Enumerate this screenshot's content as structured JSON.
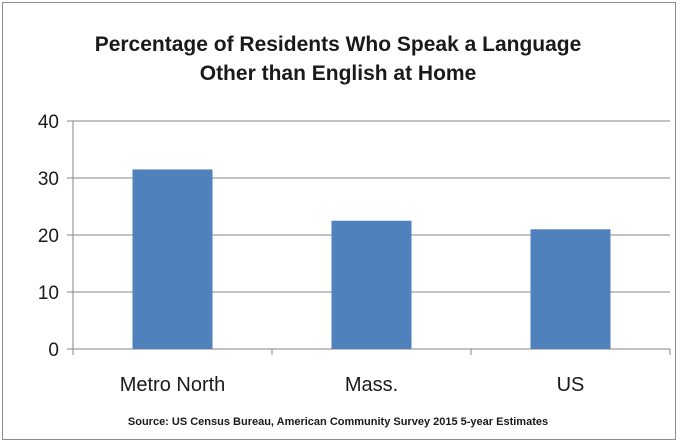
{
  "chart_data": {
    "type": "bar",
    "title_lines": [
      "Percentage of Residents Who Speak a Language",
      "Other than English at Home"
    ],
    "categories": [
      "Metro North",
      "Mass.",
      "US"
    ],
    "values": [
      31.5,
      22.5,
      21.0
    ],
    "ylim": [
      0,
      40
    ],
    "yticks": [
      0,
      10,
      20,
      30,
      40
    ],
    "grid": true,
    "legend": "none",
    "bar_color": "#4f81bd",
    "source": "Source: US Census Bureau, American Community Survey 2015  5-year Estimates"
  }
}
